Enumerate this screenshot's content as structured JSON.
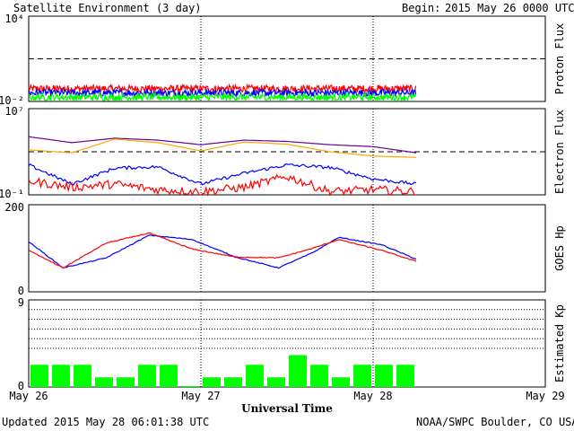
{
  "header": {
    "title": "Satellite Environment (3 day)",
    "begin_label": "Begin:",
    "begin_value": "2015 May 26 0000 UTC"
  },
  "footer": {
    "updated": "Updated 2015 May 28 06:01:38 UTC",
    "credit": "NOAA/SWPC Boulder, CO USA"
  },
  "colors": {
    "red": "#ff0000",
    "blue": "#0000ff",
    "green": "#00ff00",
    "purple": "#660099",
    "orange": "#ffa500",
    "frame": "#000000"
  },
  "chart_data": [
    {
      "type": "line",
      "ylabel": "Proton Flux",
      "scale": "log",
      "ylim": [
        0.01,
        10000
      ],
      "tick_labels": [
        "10⁴",
        "10⁻²"
      ],
      "threshold": 10,
      "x_range_days": [
        0,
        3
      ],
      "data_end_day": 2.25,
      "series": [
        {
          "color": "red",
          "level": 0.08
        },
        {
          "color": "blue",
          "level": 0.04
        },
        {
          "color": "green",
          "level": 0.02
        }
      ]
    },
    {
      "type": "line",
      "ylabel": "Electron Flux",
      "scale": "log",
      "ylim": [
        0.1,
        10000000
      ],
      "tick_labels": [
        "10⁷",
        "10⁻¹"
      ],
      "threshold": 1000,
      "x": [
        0,
        0.25,
        0.5,
        0.75,
        1.0,
        1.25,
        1.5,
        1.75,
        2.0,
        2.25
      ],
      "series": [
        {
          "color": "purple",
          "values": [
            25000,
            7000,
            18000,
            12000,
            4500,
            12000,
            9000,
            4500,
            3000,
            800
          ]
        },
        {
          "color": "orange",
          "values": [
            1500,
            800,
            15000,
            7000,
            1200,
            8000,
            5000,
            1000,
            400,
            300
          ]
        },
        {
          "color": "blue",
          "values": [
            60,
            1,
            30,
            40,
            1,
            10,
            60,
            35,
            3,
            1
          ]
        },
        {
          "color": "red",
          "values": [
            2,
            0.5,
            1,
            0.3,
            0.2,
            0.5,
            5,
            0.2,
            0.3,
            0.2
          ]
        }
      ]
    },
    {
      "type": "line",
      "ylabel": "GOES Hp",
      "ylim": [
        0,
        200
      ],
      "tick_labels": [
        "200",
        "0"
      ],
      "x": [
        0,
        0.2,
        0.45,
        0.7,
        0.95,
        1.2,
        1.45,
        1.65,
        1.8,
        2.05,
        2.25
      ],
      "series": [
        {
          "color": "blue",
          "values": [
            115,
            55,
            78,
            130,
            120,
            80,
            55,
            90,
            125,
            108,
            75
          ]
        },
        {
          "color": "red",
          "values": [
            95,
            55,
            112,
            135,
            98,
            80,
            78,
            100,
            120,
            95,
            70
          ]
        }
      ]
    },
    {
      "type": "bar",
      "ylabel": "Estimated Kp",
      "ylim": [
        0,
        9
      ],
      "tick_labels": [
        "9",
        "0"
      ],
      "grid_lines": [
        4,
        5,
        6,
        7,
        8
      ],
      "bar_color": "green",
      "values": [
        2.3,
        2.3,
        2.3,
        1.0,
        1.0,
        2.3,
        2.3,
        0.1,
        1.0,
        1.0,
        2.3,
        1.0,
        3.3,
        2.3,
        1.0,
        2.3,
        2.3,
        2.3
      ]
    }
  ],
  "x_axis": {
    "tick_labels": [
      "May 26",
      "May 27",
      "May 28",
      "May 29"
    ],
    "title": "Universal Time"
  }
}
